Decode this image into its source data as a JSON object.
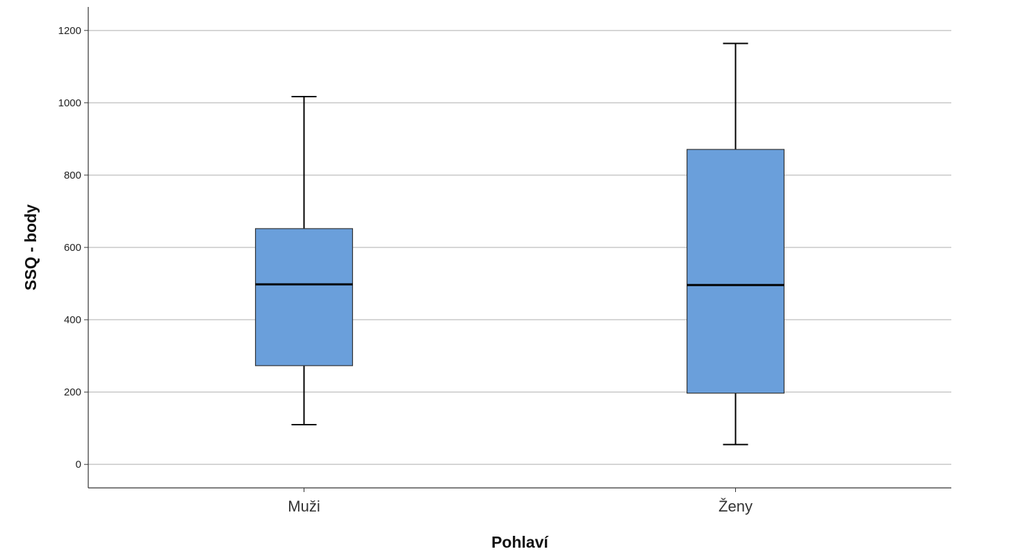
{
  "chart_data": {
    "type": "boxplot",
    "xlabel": "Pohlaví",
    "ylabel": "SSQ - body",
    "ylim": [
      -65,
      1265
    ],
    "yticks": [
      "0",
      "200",
      "400",
      "600",
      "800",
      "1000",
      "1200"
    ],
    "ytick_values": [
      0,
      200,
      400,
      600,
      800,
      1000,
      1200
    ],
    "grid": true,
    "box_color": "#6a9fdb",
    "categories": [
      "Muži",
      "Ženy"
    ],
    "boxes": [
      {
        "category": "Muži",
        "min": 110,
        "q1": 273,
        "median": 498,
        "q3": 652,
        "max": 1017
      },
      {
        "category": "Ženy",
        "min": 55,
        "q1": 197,
        "median": 496,
        "q3": 871,
        "max": 1164
      }
    ]
  }
}
